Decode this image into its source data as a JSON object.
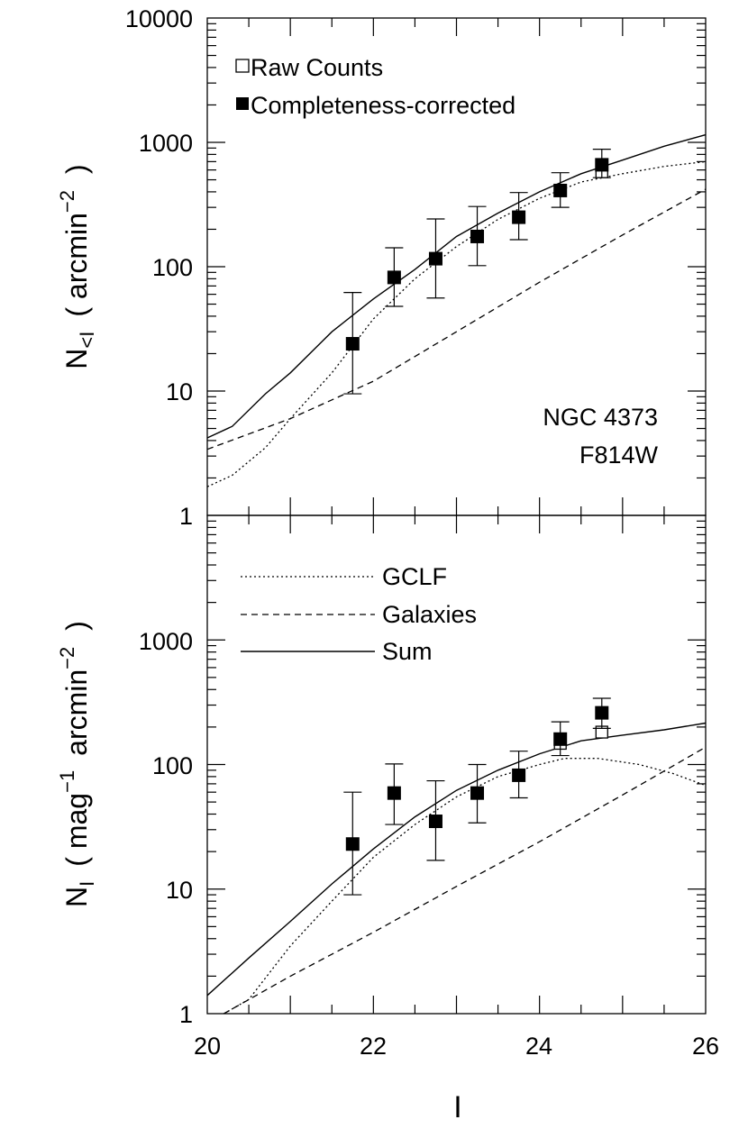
{
  "chart_data": [
    {
      "type": "scatter",
      "xlabel": "I",
      "ylabel_main": "N",
      "ylabel_sub": "<I",
      "ylabel_unit": "(  arcmin",
      "ylabel_exp": "−2",
      "ylabel_close": ")",
      "yscale": "log",
      "ylim": [
        1,
        10000
      ],
      "xlim": [
        20,
        26
      ],
      "ytick_labels": [
        "1",
        "10",
        "100",
        "1000",
        "10000"
      ],
      "annotation": [
        "NGC 4373",
        "F814W"
      ],
      "legend": {
        "placement": "top-left",
        "raw_label": "Raw Counts",
        "corrected_label": "Completeness-corrected"
      },
      "raw_points": [
        {
          "x": 24.75,
          "y": 580
        }
      ],
      "corrected_points": [
        {
          "x": 21.75,
          "y": 24,
          "lo": 9.5,
          "hi": 62
        },
        {
          "x": 22.25,
          "y": 82,
          "lo": 48,
          "hi": 142
        },
        {
          "x": 22.75,
          "y": 116,
          "lo": 56,
          "hi": 242
        },
        {
          "x": 23.25,
          "y": 175,
          "lo": 102,
          "hi": 305
        },
        {
          "x": 23.75,
          "y": 250,
          "lo": 165,
          "hi": 395
        },
        {
          "x": 24.25,
          "y": 410,
          "lo": 300,
          "hi": 570
        },
        {
          "x": 24.75,
          "y": 660,
          "lo": 520,
          "hi": 880
        }
      ],
      "curves": {
        "gclf": [
          [
            20,
            1.7
          ],
          [
            20.3,
            2.1
          ],
          [
            20.7,
            3.5
          ],
          [
            21.0,
            6
          ],
          [
            21.5,
            14
          ],
          [
            22.0,
            38
          ],
          [
            22.5,
            80
          ],
          [
            23.0,
            145
          ],
          [
            23.5,
            240
          ],
          [
            24.0,
            355
          ],
          [
            24.5,
            480
          ],
          [
            25.0,
            560
          ],
          [
            25.5,
            640
          ],
          [
            26.0,
            700
          ]
        ],
        "galaxies": [
          [
            20,
            3.4
          ],
          [
            21,
            6
          ],
          [
            22,
            12
          ],
          [
            23,
            30
          ],
          [
            24,
            75
          ],
          [
            25,
            180
          ],
          [
            26,
            420
          ]
        ],
        "sum": [
          [
            20,
            4.2
          ],
          [
            20.3,
            5.2
          ],
          [
            20.7,
            9.5
          ],
          [
            21.0,
            14
          ],
          [
            21.5,
            30
          ],
          [
            22.0,
            55
          ],
          [
            22.5,
            95
          ],
          [
            23.0,
            175
          ],
          [
            23.5,
            270
          ],
          [
            24.0,
            400
          ],
          [
            24.5,
            560
          ],
          [
            25.0,
            720
          ],
          [
            25.5,
            930
          ],
          [
            26.0,
            1150
          ]
        ]
      }
    },
    {
      "type": "scatter",
      "xlabel": "I",
      "ylabel_main": "N",
      "ylabel_sub": "I",
      "ylabel_unit": "(  mag",
      "ylabel_exp": "−1",
      "ylabel_unit2": "arcmin",
      "ylabel_exp2": "−2",
      "ylabel_close": ")",
      "yscale": "log",
      "ylim": [
        1,
        10000
      ],
      "xlim": [
        20,
        26
      ],
      "ytick_labels": [
        "1",
        "10",
        "100",
        "1000"
      ],
      "xtick_labels": [
        "20",
        "22",
        "24",
        "26"
      ],
      "legend": {
        "placement": "top-left",
        "gclf_label": "GCLF",
        "galaxies_label": "Galaxies",
        "sum_label": "Sum"
      },
      "raw_points": [
        {
          "x": 24.25,
          "y": 148
        },
        {
          "x": 24.75,
          "y": 182
        }
      ],
      "corrected_points": [
        {
          "x": 21.75,
          "y": 23,
          "lo": 9,
          "hi": 60
        },
        {
          "x": 22.25,
          "y": 59,
          "lo": 33,
          "hi": 101
        },
        {
          "x": 22.75,
          "y": 35,
          "lo": 17,
          "hi": 74
        },
        {
          "x": 23.25,
          "y": 59,
          "lo": 34,
          "hi": 100
        },
        {
          "x": 23.75,
          "y": 82,
          "lo": 54,
          "hi": 128
        },
        {
          "x": 24.25,
          "y": 160,
          "lo": 118,
          "hi": 220
        },
        {
          "x": 24.75,
          "y": 260,
          "lo": 195,
          "hi": 340
        }
      ],
      "curves": {
        "gclf": [
          [
            20.2,
            0.95
          ],
          [
            20.5,
            1.3
          ],
          [
            21.0,
            3.5
          ],
          [
            21.5,
            8
          ],
          [
            22.0,
            18
          ],
          [
            22.5,
            33
          ],
          [
            23.0,
            55
          ],
          [
            23.5,
            80
          ],
          [
            24.0,
            100
          ],
          [
            24.3,
            112
          ],
          [
            24.7,
            112
          ],
          [
            25.2,
            100
          ],
          [
            25.6,
            85
          ],
          [
            26.0,
            68
          ]
        ],
        "galaxies": [
          [
            20.2,
            0.95
          ],
          [
            21,
            2
          ],
          [
            22,
            4.5
          ],
          [
            23,
            10.5
          ],
          [
            24,
            24
          ],
          [
            25,
            57
          ],
          [
            26,
            138
          ]
        ],
        "sum": [
          [
            20,
            1.4
          ],
          [
            20.5,
            2.8
          ],
          [
            21.0,
            5.5
          ],
          [
            21.5,
            11
          ],
          [
            22.0,
            21
          ],
          [
            22.5,
            38
          ],
          [
            23.0,
            62
          ],
          [
            23.5,
            90
          ],
          [
            24.0,
            122
          ],
          [
            24.5,
            155
          ],
          [
            25.0,
            172
          ],
          [
            25.5,
            190
          ],
          [
            26.0,
            215
          ]
        ]
      }
    }
  ]
}
